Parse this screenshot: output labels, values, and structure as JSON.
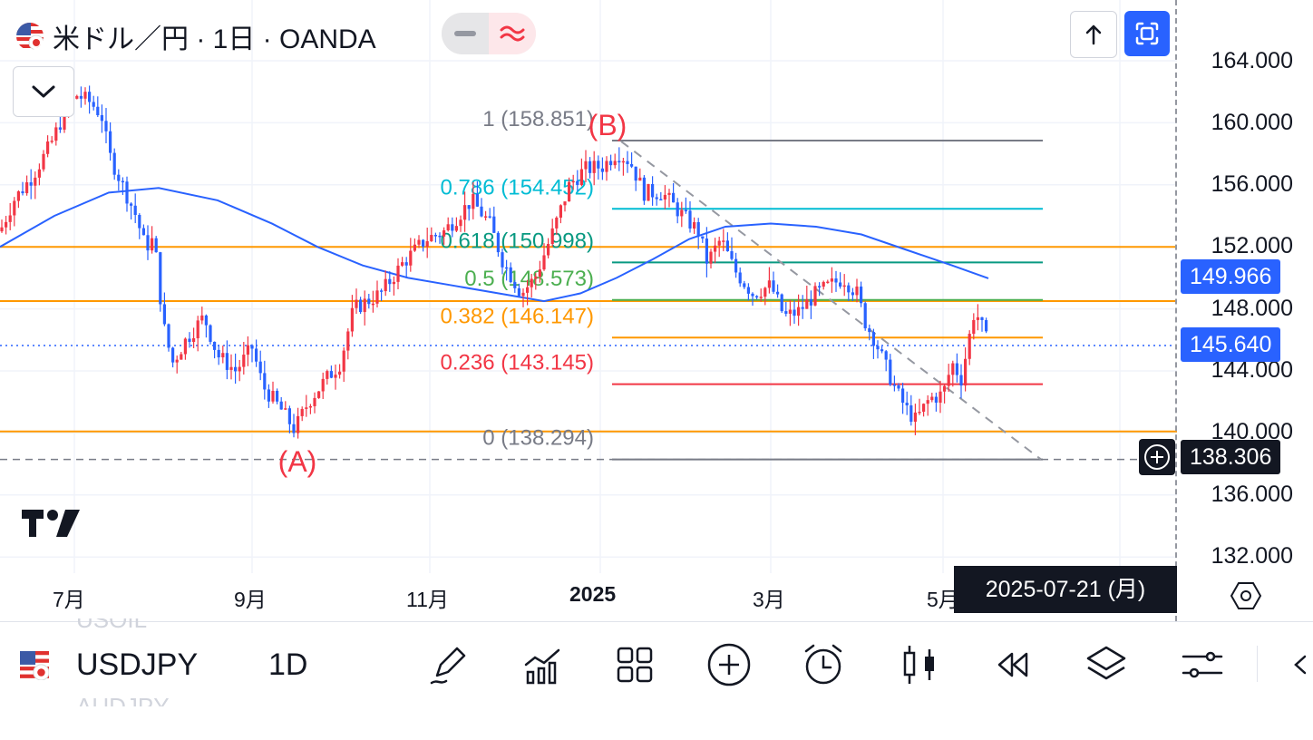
{
  "header": {
    "title": "米ドル／円 · 1日 · OANDA",
    "pill_left_icon": "minus-icon",
    "pill_right_icon": "wave-icon",
    "pill_right_color": "#f23645"
  },
  "price_axis": {
    "labels": [
      "164.000",
      "160.000",
      "156.000",
      "152.000",
      "148.000",
      "144.000",
      "140.000",
      "136.000",
      "132.000"
    ]
  },
  "time_axis": {
    "labels": [
      "7月",
      "9月",
      "11月",
      "2025",
      "3月",
      "5月"
    ],
    "crosshair_date": "2025-07-21 (月)"
  },
  "price_tags": {
    "ma_value": "149.966",
    "last_price": "145.640",
    "crosshair_price": "138.306"
  },
  "fib": {
    "levels": [
      {
        "ratio": "1",
        "price": "158.851",
        "label": "1 (158.851)",
        "color": "#787b86"
      },
      {
        "ratio": "0.786",
        "price": "154.452",
        "label": "0.786 (154.452)",
        "color": "#00bcd4"
      },
      {
        "ratio": "0.618",
        "price": "150.998",
        "label": "0.618 (150.998)",
        "color": "#089981"
      },
      {
        "ratio": "0.5",
        "price": "148.573",
        "label": "0.5 (148.573)",
        "color": "#4caf50"
      },
      {
        "ratio": "0.382",
        "price": "146.147",
        "label": "0.382 (146.147)",
        "color": "#ff9800"
      },
      {
        "ratio": "0.236",
        "price": "143.145",
        "label": "0.236 (143.145)",
        "color": "#f23645"
      },
      {
        "ratio": "0",
        "price": "138.294",
        "label": "0 (138.294)",
        "color": "#787b86"
      }
    ]
  },
  "annotations": {
    "wave_a": "(A)",
    "wave_b": "(B)"
  },
  "horizontal_lines": [
    152.0,
    148.5,
    140.1
  ],
  "colors": {
    "up": "#f23645",
    "down": "#2962ff",
    "ma": "#2962ff",
    "hline": "#ff9800",
    "accent": "#2962ff",
    "dark_tag": "#131722"
  },
  "toolbar": {
    "symbol": "USDJPY",
    "interval": "1D",
    "ghost_top": "USOIL",
    "ghost_bottom": "AUDJPY",
    "icons": [
      "pen-icon",
      "indicators-icon",
      "grid-icon",
      "add-circle-icon",
      "alarm-icon",
      "candles-icon",
      "rewind-icon",
      "layers-icon",
      "settings-sliders-icon",
      "chevron-left-icon"
    ]
  },
  "chart_data": {
    "type": "candlestick",
    "symbol": "USDJPY",
    "interval": "1D",
    "source": "OANDA",
    "x_ticks": [
      "7月",
      "9月",
      "11月",
      "2025",
      "3月",
      "5月"
    ],
    "ylim": [
      130.5,
      166.0
    ],
    "y_ticks": [
      164,
      160,
      156,
      152,
      148,
      144,
      140,
      136,
      132
    ],
    "last_price": 145.64,
    "moving_average_last": 149.966,
    "path_points": [
      [
        0,
        153.0
      ],
      [
        15,
        155.0
      ],
      [
        35,
        156.5
      ],
      [
        55,
        158.5
      ],
      [
        70,
        160.5
      ],
      [
        85,
        161.8
      ],
      [
        100,
        161.3
      ],
      [
        112,
        160.5
      ],
      [
        120,
        158.0
      ],
      [
        135,
        156.0
      ],
      [
        150,
        154.0
      ],
      [
        160,
        152.0
      ],
      [
        170,
        152.5
      ],
      [
        180,
        147.0
      ],
      [
        190,
        144.5
      ],
      [
        205,
        146.0
      ],
      [
        225,
        147.5
      ],
      [
        240,
        145.0
      ],
      [
        260,
        144.0
      ],
      [
        278,
        145.5
      ],
      [
        290,
        143.0
      ],
      [
        310,
        141.5
      ],
      [
        325,
        140.2
      ],
      [
        340,
        142.0
      ],
      [
        360,
        143.5
      ],
      [
        375,
        144.5
      ],
      [
        390,
        148.0
      ],
      [
        420,
        149.0
      ],
      [
        445,
        151.0
      ],
      [
        470,
        152.5
      ],
      [
        490,
        153.0
      ],
      [
        505,
        154.0
      ],
      [
        520,
        155.0
      ],
      [
        540,
        153.5
      ],
      [
        555,
        151.0
      ],
      [
        575,
        149.0
      ],
      [
        590,
        150.0
      ],
      [
        610,
        153.0
      ],
      [
        628,
        156.0
      ],
      [
        645,
        157.0
      ],
      [
        665,
        157.2
      ],
      [
        680,
        158.1
      ],
      [
        695,
        157.5
      ],
      [
        710,
        155.5
      ],
      [
        730,
        155.5
      ],
      [
        750,
        154.2
      ],
      [
        770,
        153.0
      ],
      [
        780,
        151.0
      ],
      [
        795,
        152.5
      ],
      [
        810,
        150.5
      ],
      [
        830,
        149.0
      ],
      [
        850,
        149.5
      ],
      [
        865,
        147.5
      ],
      [
        880,
        147.8
      ],
      [
        900,
        149.0
      ],
      [
        915,
        149.5
      ],
      [
        930,
        150.0
      ],
      [
        945,
        149.0
      ],
      [
        955,
        147.0
      ],
      [
        965,
        146.0
      ],
      [
        975,
        144.5
      ],
      [
        990,
        142.5
      ],
      [
        1000,
        141.5
      ],
      [
        1010,
        140.8
      ],
      [
        1025,
        142.2
      ],
      [
        1040,
        142.5
      ],
      [
        1050,
        144.5
      ],
      [
        1060,
        143.5
      ],
      [
        1075,
        148.0
      ],
      [
        1085,
        146.5
      ],
      [
        1090,
        145.6
      ]
    ],
    "moving_average_points": [
      [
        0,
        152.0
      ],
      [
        60,
        154.0
      ],
      [
        120,
        155.5
      ],
      [
        175,
        155.8
      ],
      [
        240,
        155.0
      ],
      [
        300,
        153.5
      ],
      [
        350,
        152.0
      ],
      [
        400,
        150.8
      ],
      [
        450,
        150.0
      ],
      [
        500,
        149.5
      ],
      [
        550,
        149.0
      ],
      [
        600,
        148.5
      ],
      [
        640,
        149.0
      ],
      [
        680,
        150.0
      ],
      [
        720,
        151.2
      ],
      [
        760,
        152.5
      ],
      [
        800,
        153.3
      ],
      [
        850,
        153.5
      ],
      [
        900,
        153.3
      ],
      [
        950,
        152.8
      ],
      [
        1000,
        151.8
      ],
      [
        1050,
        150.8
      ],
      [
        1090,
        149.966
      ]
    ],
    "fibonacci_retracement": {
      "high": 158.851,
      "low": 138.294,
      "levels": [
        1,
        0.786,
        0.618,
        0.5,
        0.382,
        0.236,
        0
      ]
    },
    "trendline": {
      "from": [
        685,
        158.8
      ],
      "to": [
        1148,
        138.3
      ]
    },
    "annotations": [
      {
        "text": "(B)",
        "at": [
          668,
          159.2
        ]
      },
      {
        "text": "(A)",
        "at": [
          328,
          137.5
        ]
      }
    ]
  }
}
